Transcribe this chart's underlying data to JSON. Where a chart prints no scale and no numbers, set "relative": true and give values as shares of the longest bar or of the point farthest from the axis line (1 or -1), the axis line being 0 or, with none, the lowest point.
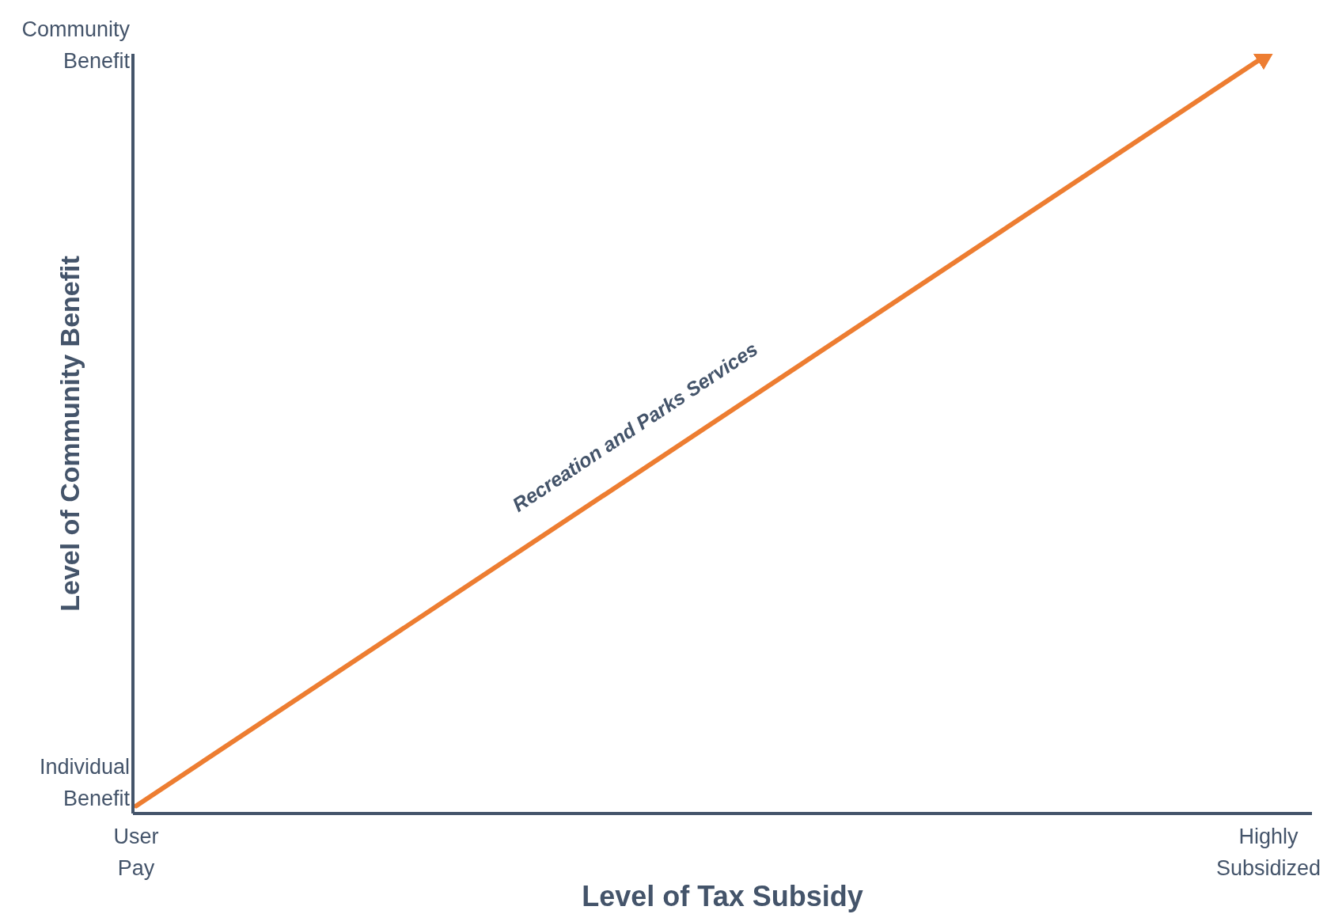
{
  "chart_data": {
    "type": "line",
    "xlabel": "Level of Tax Subsidy",
    "ylabel": "Level of Community Benefit",
    "categories": [
      "User Pay",
      "Highly Subsidized"
    ],
    "values": [
      0.01,
      1
    ],
    "color": "#ed7d31",
    "relative": true,
    "annotations": [
      "Recreation and Parks Services",
      "Individual Benefit",
      "Community Benefit"
    ]
  }
}
